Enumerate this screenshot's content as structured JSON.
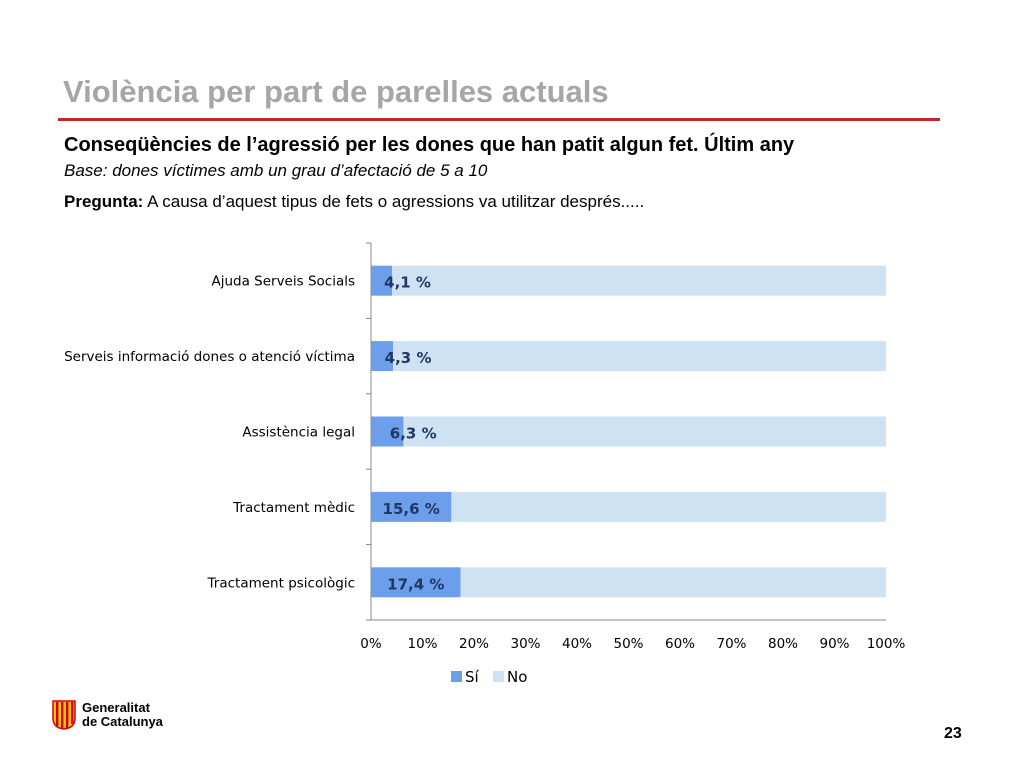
{
  "header": {
    "title": "Violència per part de parelles actuals",
    "subtitle": "Conseqüències de l’agressió per les dones que han  patit algun fet. Últim any",
    "base": "Base: dones víctimes amb un grau d’afectació de 5 a 10",
    "question_label": "Pregunta:",
    "question_text": " A causa d’aquest tipus de fets o agressions va utilitzar després....."
  },
  "chart_data": {
    "type": "bar",
    "orientation": "horizontal",
    "stacked": "percent",
    "categories": [
      "Ajuda Serveis Socials",
      "Serveis informació dones o atenció víctima",
      "Assistència legal",
      "Tractament mèdic",
      "Tractament psicològic"
    ],
    "series": [
      {
        "name": "Sí",
        "values": [
          4.1,
          4.3,
          6.3,
          15.6,
          17.4
        ],
        "color": "#6d9eeb"
      },
      {
        "name": "No",
        "values": [
          95.9,
          95.7,
          93.7,
          84.4,
          82.6
        ],
        "color": "#cfe2f3"
      }
    ],
    "data_labels": [
      "4,1 %",
      "4,3 %",
      "6,3 %",
      "15,6 %",
      "17,4 %"
    ],
    "x_ticks": [
      "0%",
      "10%",
      "20%",
      "30%",
      "40%",
      "50%",
      "60%",
      "70%",
      "80%",
      "90%",
      "100%"
    ],
    "xlim": [
      0,
      100
    ],
    "legend": "bottom",
    "grid": false
  },
  "footer": {
    "org_line1": "Generalitat",
    "org_line2": "de Catalunya",
    "page_number": "23"
  },
  "colors": {
    "title": "#a6a6a6",
    "accent_rule": "#c0282d",
    "data_label": "#1f3864",
    "logo_red": "#d0021b",
    "logo_yellow": "#f5c400"
  }
}
